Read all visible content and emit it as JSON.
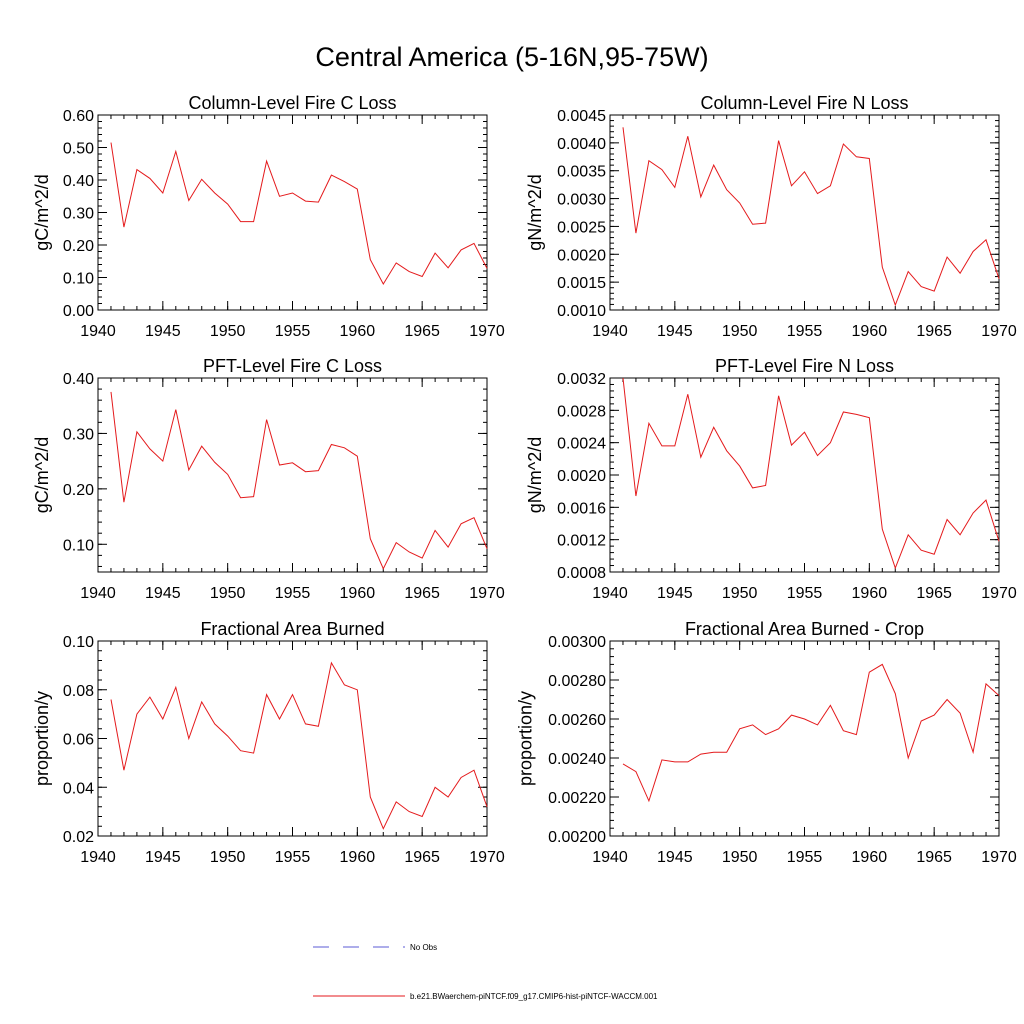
{
  "title": "Central America (5-16N,95-75W)",
  "legend": [
    {
      "label": "No Obs",
      "color": "#5b5bd6",
      "style": "dashed"
    },
    {
      "label": "b.e21.BWaerchem-piNTCF.f09_g17.CMIP6-hist-piNTCF-WACCM.001",
      "color": "#e41a1c",
      "style": "solid"
    }
  ],
  "chart_data": [
    {
      "type": "line",
      "title": "Column-Level Fire C Loss",
      "ylabel": "gC/m^2/d",
      "xlim": [
        1940,
        1970
      ],
      "ylim": [
        0.0,
        0.6
      ],
      "xticks": [
        1940,
        1945,
        1950,
        1955,
        1960,
        1965,
        1970
      ],
      "xtick_labels": [
        "1940",
        "1945",
        "1950",
        "1955",
        "1960",
        "1965",
        "1970"
      ],
      "yticks": [
        0.0,
        0.1,
        0.2,
        0.3,
        0.4,
        0.5,
        0.6
      ],
      "ytick_labels": [
        "0.00",
        "0.10",
        "0.20",
        "0.30",
        "0.40",
        "0.50",
        "0.60"
      ],
      "series": [
        {
          "color": "#e41a1c",
          "x": [
            1941,
            1942,
            1943,
            1944,
            1945,
            1946,
            1947,
            1948,
            1949,
            1950,
            1951,
            1952,
            1953,
            1954,
            1955,
            1956,
            1957,
            1958,
            1959,
            1960,
            1961,
            1962,
            1963,
            1964,
            1965,
            1966,
            1967,
            1968,
            1969,
            1970
          ],
          "values": [
            0.515,
            0.255,
            0.432,
            0.405,
            0.36,
            0.488,
            0.337,
            0.402,
            0.36,
            0.326,
            0.272,
            0.272,
            0.458,
            0.35,
            0.36,
            0.335,
            0.332,
            0.415,
            0.395,
            0.372,
            0.155,
            0.08,
            0.145,
            0.118,
            0.103,
            0.175,
            0.13,
            0.185,
            0.205,
            0.128
          ]
        }
      ]
    },
    {
      "type": "line",
      "title": "Column-Level Fire N Loss",
      "ylabel": "gN/m^2/d",
      "xlim": [
        1940,
        1970
      ],
      "ylim": [
        0.001,
        0.0045
      ],
      "xticks": [
        1940,
        1945,
        1950,
        1955,
        1960,
        1965,
        1970
      ],
      "xtick_labels": [
        "1940",
        "1945",
        "1950",
        "1955",
        "1960",
        "1965",
        "1970"
      ],
      "yticks": [
        0.001,
        0.0015,
        0.002,
        0.0025,
        0.003,
        0.0035,
        0.004,
        0.0045
      ],
      "ytick_labels": [
        "0.0010",
        "0.0015",
        "0.0020",
        "0.0025",
        "0.0030",
        "0.0035",
        "0.0040",
        "0.0045"
      ],
      "series": [
        {
          "color": "#e41a1c",
          "x": [
            1941,
            1942,
            1943,
            1944,
            1945,
            1946,
            1947,
            1948,
            1949,
            1950,
            1951,
            1952,
            1953,
            1954,
            1955,
            1956,
            1957,
            1958,
            1959,
            1960,
            1961,
            1962,
            1963,
            1964,
            1965,
            1966,
            1967,
            1968,
            1969,
            1970
          ],
          "values": [
            0.00428,
            0.00238,
            0.00368,
            0.00352,
            0.0032,
            0.00412,
            0.00303,
            0.0036,
            0.00316,
            0.00292,
            0.00254,
            0.00256,
            0.00404,
            0.00323,
            0.00348,
            0.00309,
            0.00323,
            0.00398,
            0.00375,
            0.00372,
            0.00177,
            0.00109,
            0.00169,
            0.00142,
            0.00134,
            0.00195,
            0.00166,
            0.00205,
            0.00226,
            0.00156
          ]
        }
      ]
    },
    {
      "type": "line",
      "title": "PFT-Level Fire C Loss",
      "ylabel": "gC/m^2/d",
      "xlim": [
        1940,
        1970
      ],
      "ylim": [
        0.05,
        0.4
      ],
      "xticks": [
        1940,
        1945,
        1950,
        1955,
        1960,
        1965,
        1970
      ],
      "xtick_labels": [
        "1940",
        "1945",
        "1950",
        "1955",
        "1960",
        "1965",
        "1970"
      ],
      "yticks": [
        0.1,
        0.2,
        0.3,
        0.4
      ],
      "ytick_labels": [
        "0.10",
        "0.20",
        "0.30",
        "0.40"
      ],
      "series": [
        {
          "color": "#e41a1c",
          "x": [
            1941,
            1942,
            1943,
            1944,
            1945,
            1946,
            1947,
            1948,
            1949,
            1950,
            1951,
            1952,
            1953,
            1954,
            1955,
            1956,
            1957,
            1958,
            1959,
            1960,
            1961,
            1962,
            1963,
            1964,
            1965,
            1966,
            1967,
            1968,
            1969,
            1970
          ],
          "values": [
            0.375,
            0.176,
            0.303,
            0.272,
            0.25,
            0.343,
            0.234,
            0.277,
            0.248,
            0.226,
            0.184,
            0.186,
            0.325,
            0.243,
            0.247,
            0.231,
            0.233,
            0.28,
            0.274,
            0.259,
            0.11,
            0.056,
            0.103,
            0.086,
            0.075,
            0.125,
            0.095,
            0.137,
            0.148,
            0.092
          ]
        }
      ]
    },
    {
      "type": "line",
      "title": "PFT-Level Fire N Loss",
      "ylabel": "gN/m^2/d",
      "xlim": [
        1940,
        1970
      ],
      "ylim": [
        0.0008,
        0.0032
      ],
      "xticks": [
        1940,
        1945,
        1950,
        1955,
        1960,
        1965,
        1970
      ],
      "xtick_labels": [
        "1940",
        "1945",
        "1950",
        "1955",
        "1960",
        "1965",
        "1970"
      ],
      "yticks": [
        0.0008,
        0.0012,
        0.0016,
        0.002,
        0.0024,
        0.0028,
        0.0032
      ],
      "ytick_labels": [
        "0.0008",
        "0.0012",
        "0.0016",
        "0.0020",
        "0.0024",
        "0.0028",
        "0.0032"
      ],
      "series": [
        {
          "color": "#e41a1c",
          "x": [
            1941,
            1942,
            1943,
            1944,
            1945,
            1946,
            1947,
            1948,
            1949,
            1950,
            1951,
            1952,
            1953,
            1954,
            1955,
            1956,
            1957,
            1958,
            1959,
            1960,
            1961,
            1962,
            1963,
            1964,
            1965,
            1966,
            1967,
            1968,
            1969,
            1970
          ],
          "values": [
            0.0032,
            0.00174,
            0.00264,
            0.00236,
            0.00236,
            0.003,
            0.00222,
            0.00259,
            0.0023,
            0.00211,
            0.00184,
            0.00187,
            0.00298,
            0.00237,
            0.00253,
            0.00224,
            0.0024,
            0.00278,
            0.00275,
            0.00271,
            0.00133,
            0.00085,
            0.00126,
            0.00107,
            0.00102,
            0.00145,
            0.00126,
            0.00153,
            0.00169,
            0.00118
          ]
        }
      ]
    },
    {
      "type": "line",
      "title": "Fractional Area Burned",
      "ylabel": "proportion/y",
      "xlim": [
        1940,
        1970
      ],
      "ylim": [
        0.02,
        0.1
      ],
      "xticks": [
        1940,
        1945,
        1950,
        1955,
        1960,
        1965,
        1970
      ],
      "xtick_labels": [
        "1940",
        "1945",
        "1950",
        "1955",
        "1960",
        "1965",
        "1970"
      ],
      "yticks": [
        0.02,
        0.04,
        0.06,
        0.08,
        0.1
      ],
      "ytick_labels": [
        "0.02",
        "0.04",
        "0.06",
        "0.08",
        "0.10"
      ],
      "series": [
        {
          "color": "#e41a1c",
          "x": [
            1941,
            1942,
            1943,
            1944,
            1945,
            1946,
            1947,
            1948,
            1949,
            1950,
            1951,
            1952,
            1953,
            1954,
            1955,
            1956,
            1957,
            1958,
            1959,
            1960,
            1961,
            1962,
            1963,
            1964,
            1965,
            1966,
            1967,
            1968,
            1969,
            1970
          ],
          "values": [
            0.076,
            0.047,
            0.07,
            0.077,
            0.068,
            0.081,
            0.06,
            0.075,
            0.066,
            0.061,
            0.055,
            0.054,
            0.078,
            0.068,
            0.078,
            0.066,
            0.065,
            0.091,
            0.082,
            0.08,
            0.036,
            0.023,
            0.034,
            0.03,
            0.028,
            0.04,
            0.036,
            0.044,
            0.047,
            0.032
          ]
        }
      ]
    },
    {
      "type": "line",
      "title": "Fractional Area Burned - Crop",
      "ylabel": "proportion/y",
      "xlim": [
        1940,
        1970
      ],
      "ylim": [
        0.002,
        0.003
      ],
      "xticks": [
        1940,
        1945,
        1950,
        1955,
        1960,
        1965,
        1970
      ],
      "xtick_labels": [
        "1940",
        "1945",
        "1950",
        "1955",
        "1960",
        "1965",
        "1970"
      ],
      "yticks": [
        0.002,
        0.0022,
        0.0024,
        0.0026,
        0.0028,
        0.003
      ],
      "ytick_labels": [
        "0.00200",
        "0.00220",
        "0.00240",
        "0.00260",
        "0.00280",
        "0.00300"
      ],
      "series": [
        {
          "color": "#e41a1c",
          "x": [
            1941,
            1942,
            1943,
            1944,
            1945,
            1946,
            1947,
            1948,
            1949,
            1950,
            1951,
            1952,
            1953,
            1954,
            1955,
            1956,
            1957,
            1958,
            1959,
            1960,
            1961,
            1962,
            1963,
            1964,
            1965,
            1966,
            1967,
            1968,
            1969,
            1970
          ],
          "values": [
            0.00237,
            0.00233,
            0.00218,
            0.00239,
            0.00238,
            0.00238,
            0.00242,
            0.00243,
            0.00243,
            0.00255,
            0.00257,
            0.00252,
            0.00255,
            0.00262,
            0.0026,
            0.00257,
            0.00267,
            0.00254,
            0.00252,
            0.00284,
            0.00288,
            0.00273,
            0.0024,
            0.00259,
            0.00262,
            0.0027,
            0.00263,
            0.00243,
            0.00278,
            0.00272
          ]
        }
      ]
    }
  ]
}
